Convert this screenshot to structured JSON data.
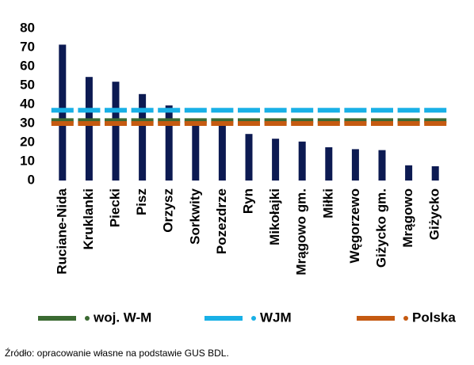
{
  "chart_data": {
    "type": "bar",
    "categories": [
      "Ruciane-Nida",
      "Kruklanki",
      "Piecki",
      "Pisz",
      "Orzysz",
      "Sorkwity",
      "Pozezdrze",
      "Ryn",
      "Mikołajki",
      "Mrągowo gm.",
      "Miłki",
      "Węgorzewo",
      "Giżycko gm.",
      "Mrągowo",
      "Giżycko"
    ],
    "values": [
      71.5,
      54.5,
      52,
      45.5,
      39.5,
      31,
      29.5,
      24.5,
      22,
      20.5,
      17.5,
      16.5,
      16,
      8,
      7.5
    ],
    "color": "#0c1a52",
    "series": [
      {
        "name": "woj. W-M",
        "color": "#3b6a32",
        "values": [
          31.5,
          31.5,
          31.5,
          31.5,
          31.5,
          31.5,
          31.5,
          31.5,
          31.5,
          31.5,
          31.5,
          31.5,
          31.5,
          31.5,
          31.5
        ]
      },
      {
        "name": "WJM",
        "color": "#19b0e6",
        "values": [
          37,
          37,
          37,
          37,
          37,
          37,
          37,
          37,
          37,
          37,
          37,
          37,
          37,
          37,
          37
        ]
      },
      {
        "name": "Polska",
        "color": "#c55a11",
        "values": [
          30,
          30,
          30,
          30,
          30,
          30,
          30,
          30,
          30,
          30,
          30,
          30,
          30,
          30,
          30
        ]
      }
    ],
    "ylim": [
      0,
      80
    ],
    "yticks": [
      0,
      10,
      20,
      30,
      40,
      50,
      60,
      70,
      80
    ],
    "grid": false,
    "legend": "bottom",
    "source": "Źródło: opracowanie własne na podstawie GUS BDL."
  }
}
